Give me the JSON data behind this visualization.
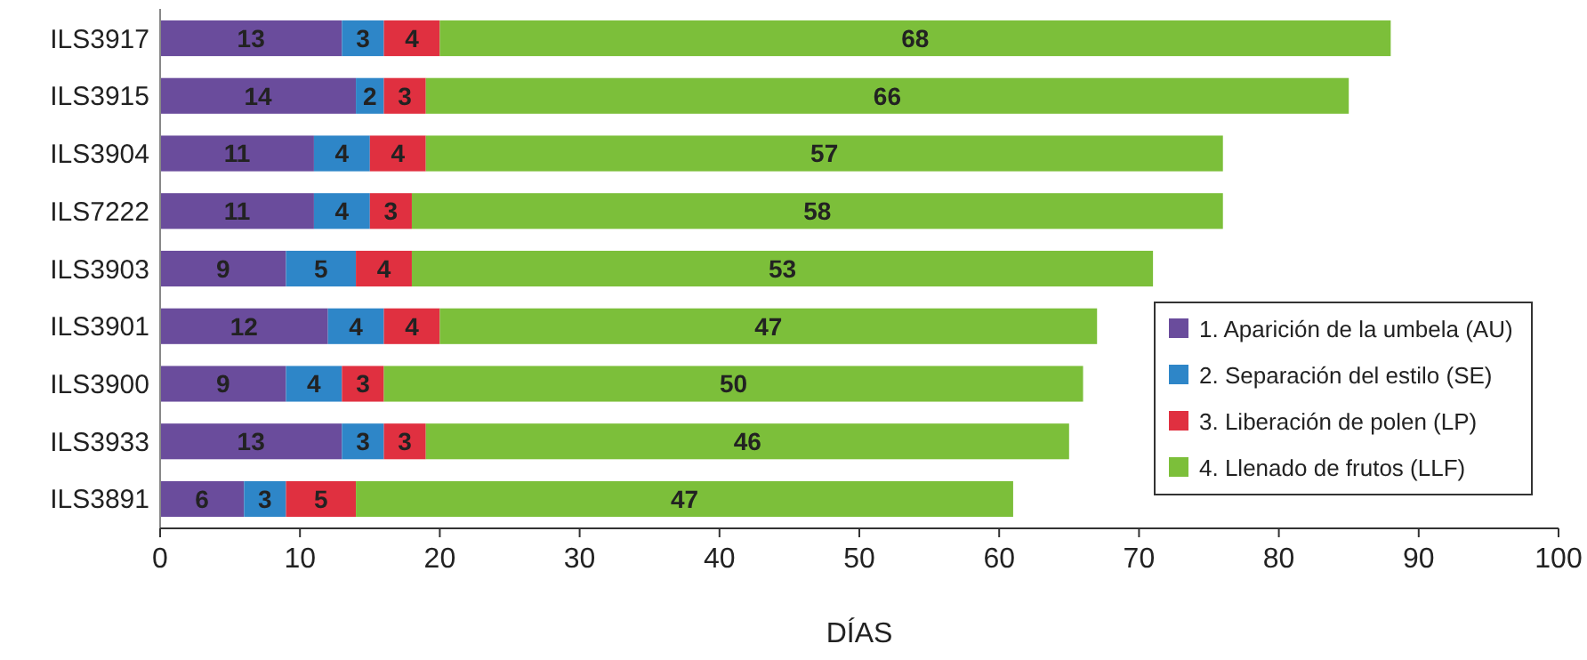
{
  "chart_data": {
    "type": "bar",
    "orientation": "horizontal",
    "stacked": true,
    "xlabel": "DÍAS",
    "categories": [
      "ILS3917",
      "ILS3915",
      "ILS3904",
      "ILS7222",
      "ILS3903",
      "ILS3901",
      "ILS3900",
      "ILS3933",
      "ILS3891"
    ],
    "series": [
      {
        "name": "1. Aparición de la umbela (AU)",
        "color": "#6a4c9c",
        "values": [
          13,
          14,
          11,
          11,
          9,
          12,
          9,
          13,
          6
        ]
      },
      {
        "name": "2. Separación del estilo (SE)",
        "color": "#2e86c8",
        "values": [
          3,
          2,
          4,
          4,
          5,
          4,
          4,
          3,
          3
        ]
      },
      {
        "name": "3. Liberación de polen (LP)",
        "color": "#e03040",
        "values": [
          4,
          3,
          4,
          3,
          4,
          4,
          3,
          3,
          5
        ]
      },
      {
        "name": "4. Llenado de frutos (LLF)",
        "color": "#7cbf3a",
        "values": [
          68,
          66,
          57,
          58,
          53,
          47,
          50,
          46,
          47
        ]
      }
    ],
    "xlim": [
      0,
      100
    ],
    "xticks": [
      0,
      10,
      20,
      30,
      40,
      50,
      60,
      70,
      80,
      90,
      100
    ],
    "data_labels": true,
    "legend": "bottom right",
    "grid": false
  }
}
